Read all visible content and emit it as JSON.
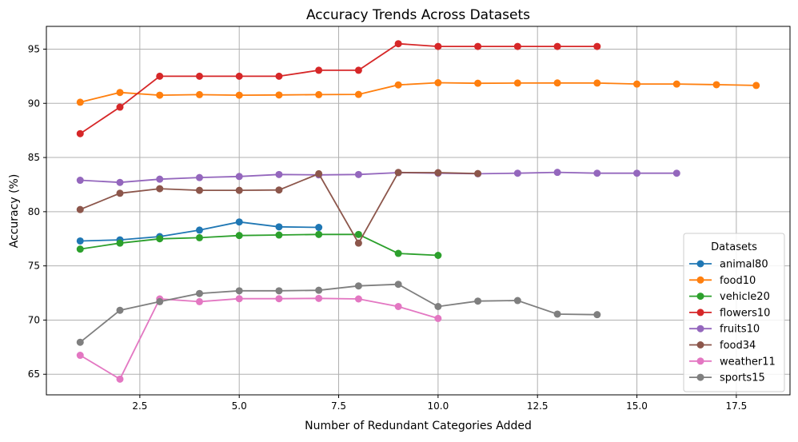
{
  "chart_data": {
    "type": "line",
    "title": "Accuracy Trends Across Datasets",
    "xlabel": "Number of Redundant Categories Added",
    "ylabel": "Accuracy (%)",
    "xlim": [
      0.15,
      18.85
    ],
    "ylim": [
      63.1,
      97.1
    ],
    "xticks": [
      2.5,
      5.0,
      7.5,
      10.0,
      12.5,
      15.0,
      17.5
    ],
    "xtick_labels": [
      "2.5",
      "5.0",
      "7.5",
      "10.0",
      "12.5",
      "15.0",
      "17.5"
    ],
    "yticks": [
      65,
      70,
      75,
      80,
      85,
      90,
      95
    ],
    "ytick_labels": [
      "65",
      "70",
      "75",
      "80",
      "85",
      "90",
      "95"
    ],
    "grid": true,
    "legend": {
      "title": "Datasets",
      "placement": "lower-right"
    },
    "series": [
      {
        "name": "animal80",
        "color": "#1f77b4",
        "x": [
          1,
          2,
          3,
          4,
          5,
          6,
          7
        ],
        "y": [
          77.3,
          77.4,
          77.7,
          78.3,
          79.05,
          78.6,
          78.55
        ]
      },
      {
        "name": "food10",
        "color": "#ff7f0e",
        "x": [
          1,
          2,
          3,
          4,
          5,
          6,
          7,
          8,
          9,
          10,
          11,
          12,
          13,
          14,
          15,
          16,
          17,
          18
        ],
        "y": [
          90.1,
          91.0,
          90.75,
          90.8,
          90.75,
          90.77,
          90.8,
          90.82,
          91.7,
          91.9,
          91.85,
          91.87,
          91.88,
          91.87,
          91.78,
          91.78,
          91.72,
          91.65
        ]
      },
      {
        "name": "vehicle20",
        "color": "#2ca02c",
        "x": [
          1,
          2,
          3,
          4,
          5,
          6,
          7,
          8,
          9,
          10
        ],
        "y": [
          76.55,
          77.1,
          77.5,
          77.6,
          77.8,
          77.85,
          77.9,
          77.9,
          76.15,
          75.97
        ]
      },
      {
        "name": "flowers10",
        "color": "#d62728",
        "x": [
          1,
          2,
          3,
          4,
          5,
          6,
          7,
          8,
          9,
          10,
          11,
          12,
          13,
          14
        ],
        "y": [
          87.2,
          89.65,
          92.5,
          92.5,
          92.5,
          92.5,
          93.05,
          93.05,
          95.5,
          95.25,
          95.25,
          95.25,
          95.25,
          95.25
        ]
      },
      {
        "name": "fruits10",
        "color": "#9467bd",
        "x": [
          1,
          2,
          3,
          4,
          5,
          6,
          7,
          8,
          9,
          10,
          11,
          12,
          13,
          14,
          15,
          16
        ],
        "y": [
          82.9,
          82.7,
          83.0,
          83.15,
          83.25,
          83.43,
          83.4,
          83.43,
          83.6,
          83.55,
          83.5,
          83.55,
          83.63,
          83.55,
          83.55,
          83.55
        ]
      },
      {
        "name": "food34",
        "color": "#8c564b",
        "x": [
          1,
          2,
          3,
          4,
          5,
          6,
          7,
          8,
          9,
          10,
          11
        ],
        "y": [
          80.2,
          81.7,
          82.12,
          81.97,
          81.97,
          82.0,
          83.5,
          77.1,
          83.62,
          83.6,
          83.52
        ]
      },
      {
        "name": "weather11",
        "color": "#e377c2",
        "x": [
          1,
          2,
          3,
          4,
          5,
          6,
          7,
          8,
          9,
          10
        ],
        "y": [
          66.75,
          64.55,
          71.95,
          71.7,
          71.97,
          71.97,
          72.0,
          71.95,
          71.25,
          70.15
        ]
      },
      {
        "name": "sports15",
        "color": "#7f7f7f",
        "x": [
          1,
          2,
          3,
          4,
          5,
          6,
          7,
          8,
          9,
          10,
          11,
          12,
          13,
          14
        ],
        "y": [
          67.95,
          70.9,
          71.7,
          72.45,
          72.7,
          72.7,
          72.75,
          73.15,
          73.3,
          71.25,
          71.75,
          71.8,
          70.55,
          70.5
        ]
      }
    ]
  }
}
